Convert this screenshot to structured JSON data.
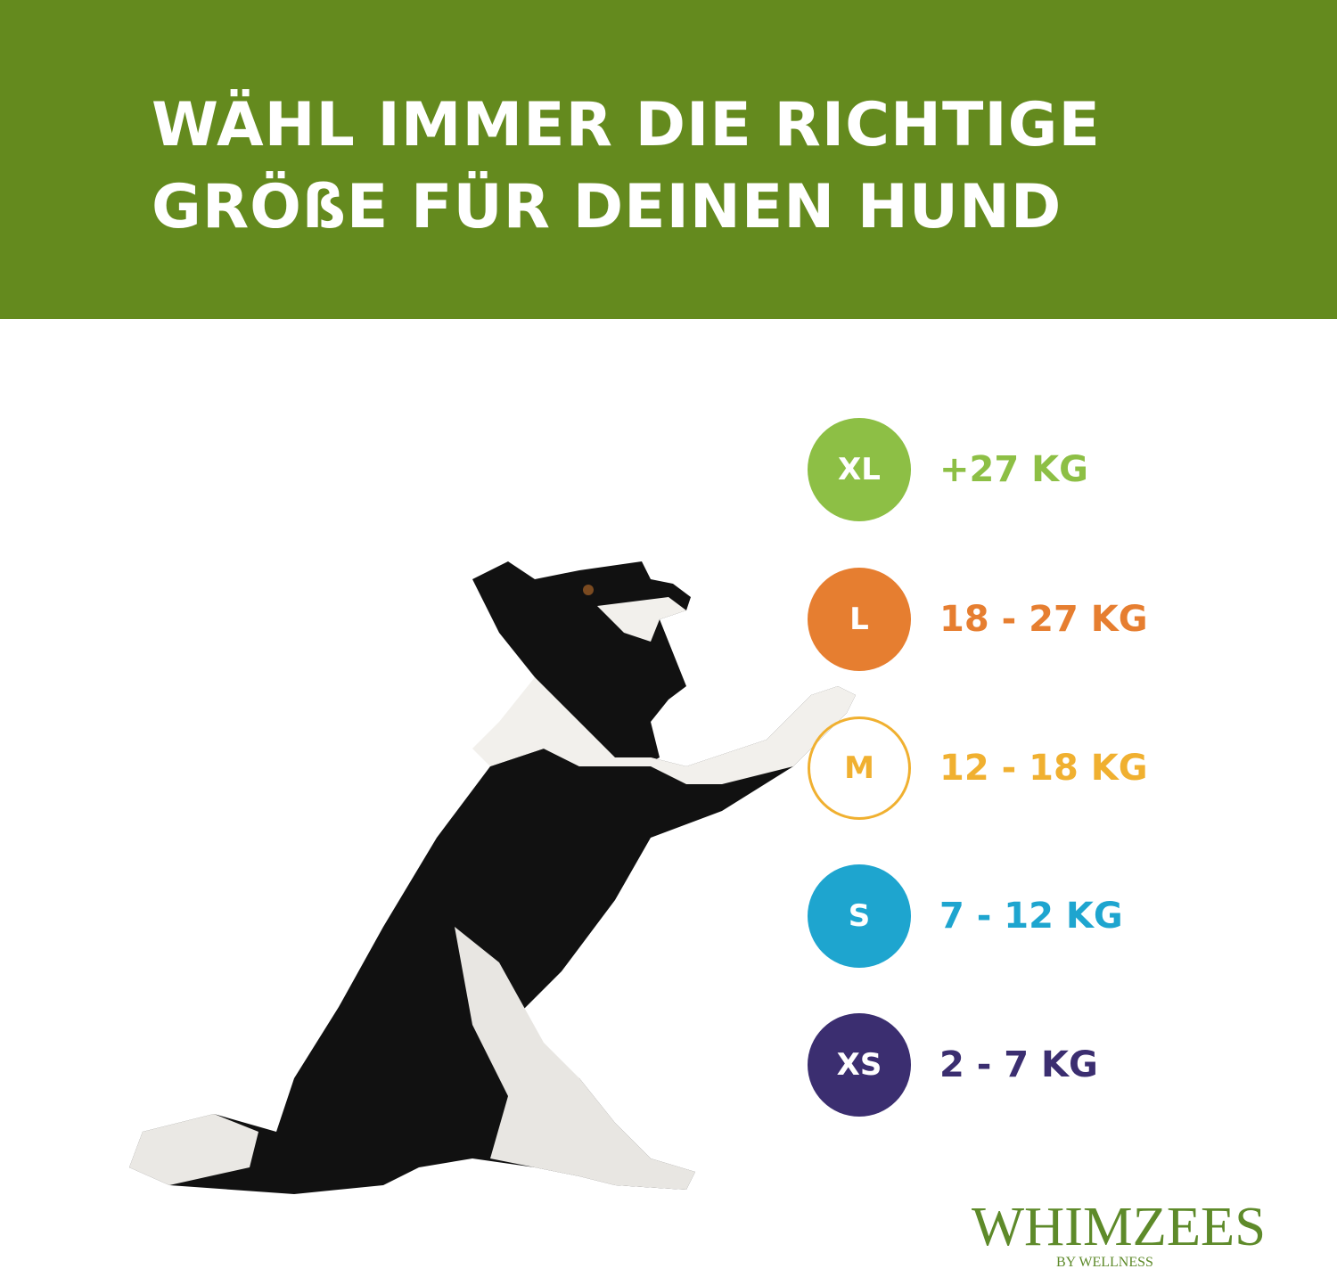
{
  "header": {
    "title_lines": [
      "WÄHL IMMER DIE RICHTIGE",
      "GRÖßE FÜR DEINEN HUND"
    ],
    "background_color": "#648a1e"
  },
  "sizes": [
    {
      "code": "XL",
      "weight": "+27 KG",
      "color": "#8dbf45",
      "style": "filled"
    },
    {
      "code": "L",
      "weight": "18 - 27 KG",
      "color": "#e67e30",
      "style": "filled"
    },
    {
      "code": "M",
      "weight": "12 - 18 KG",
      "color": "#f0b030",
      "style": "outline"
    },
    {
      "code": "S",
      "weight": "7 - 12 KG",
      "color": "#1ea5cf",
      "style": "filled"
    },
    {
      "code": "XS",
      "weight": "2 - 7 KG",
      "color": "#3b2e70",
      "style": "filled"
    }
  ],
  "logo": {
    "brand": "WHIMZEES",
    "sub": "BY WELLNESS",
    "color": "#5e8a2a"
  }
}
